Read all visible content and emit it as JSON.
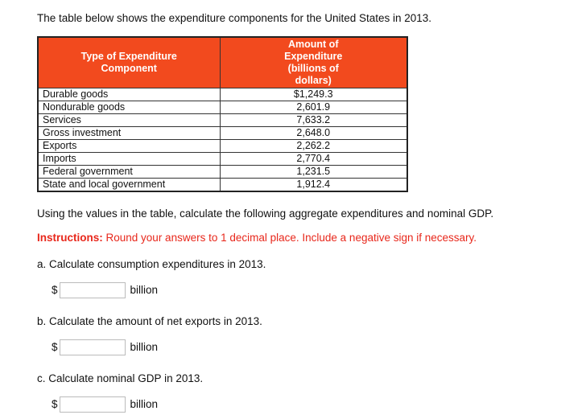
{
  "intro": "The table below shows the expenditure components for the United States in 2013.",
  "table": {
    "headers": [
      "Type of Expenditure Component",
      "Amount of Expenditure (billions of dollars)"
    ],
    "rows": [
      [
        "Durable goods",
        "$1,249.3"
      ],
      [
        "Nondurable goods",
        "2,601.9"
      ],
      [
        "Services",
        "7,633.2"
      ],
      [
        "Gross investment",
        "2,648.0"
      ],
      [
        "Exports",
        "2,262.2"
      ],
      [
        "Imports",
        "2,770.4"
      ],
      [
        "Federal government",
        "1,231.5"
      ],
      [
        "State and local government",
        "1,912.4"
      ]
    ]
  },
  "prompt": "Using the values in the table, calculate the following aggregate expenditures and nominal GDP.",
  "instructions_label": "Instructions:",
  "instructions_text": " Round your answers to 1 decimal place. Include a negative sign if necessary.",
  "questions": [
    {
      "text": "a. Calculate consumption expenditures in 2013.",
      "prefix": "$",
      "value": "",
      "unit": "billion"
    },
    {
      "text": "b. Calculate the amount of net exports in 2013.",
      "prefix": "$",
      "value": "",
      "unit": "billion"
    },
    {
      "text": "c. Calculate nominal GDP in 2013.",
      "prefix": "$",
      "value": "",
      "unit": "billion"
    }
  ],
  "colors": {
    "header_bg": "#f24a1e",
    "instructions": "#e8271b"
  }
}
